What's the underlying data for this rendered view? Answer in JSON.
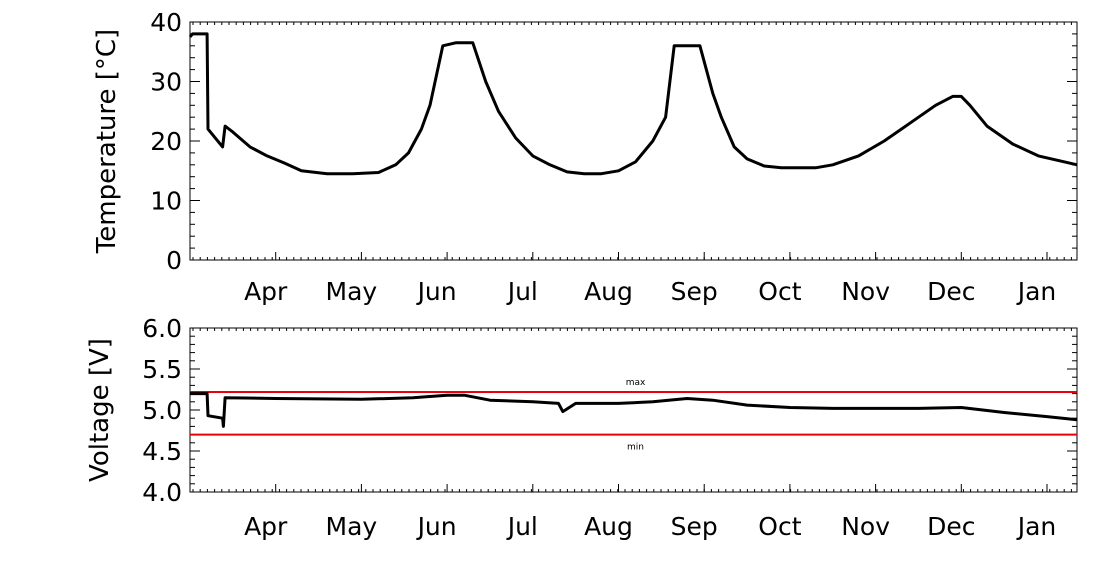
{
  "chart_data": [
    {
      "type": "line",
      "ylabel": "Temperature  [°C]",
      "ylim": [
        0,
        40
      ],
      "yticks": [
        "0",
        "10",
        "20",
        "30",
        "40"
      ],
      "xlim": [
        0,
        10.35
      ],
      "month_ticks": [
        {
          "label": "Apr",
          "x": 1.0
        },
        {
          "label": "May",
          "x": 2.0
        },
        {
          "label": "Jun",
          "x": 3.0
        },
        {
          "label": "Jul",
          "x": 4.0
        },
        {
          "label": "Aug",
          "x": 5.0
        },
        {
          "label": "Sep",
          "x": 6.0
        },
        {
          "label": "Oct",
          "x": 7.0
        },
        {
          "label": "Nov",
          "x": 8.0
        },
        {
          "label": "Dec",
          "x": 9.0
        },
        {
          "label": "Jan",
          "x": 10.0
        }
      ],
      "series": [
        {
          "x": [
            0.0,
            0.03,
            0.2,
            0.21,
            0.38,
            0.41,
            0.5,
            0.7,
            0.9,
            1.1,
            1.3,
            1.6,
            1.9,
            2.2,
            2.4,
            2.55,
            2.7,
            2.8,
            2.95,
            3.1,
            3.2,
            3.3,
            3.45,
            3.6,
            3.8,
            4.0,
            4.2,
            4.4,
            4.6,
            4.8,
            5.0,
            5.2,
            5.4,
            5.55,
            5.65,
            5.75,
            5.95,
            6.1,
            6.2,
            6.35,
            6.5,
            6.7,
            6.9,
            7.1,
            7.3,
            7.5,
            7.8,
            8.1,
            8.4,
            8.7,
            8.9,
            9.0,
            9.1,
            9.3,
            9.6,
            9.9,
            10.2,
            10.35
          ],
          "y": [
            37.5,
            38,
            38,
            22,
            19,
            22.5,
            21.5,
            19,
            17.5,
            16.3,
            15,
            14.5,
            14.5,
            14.7,
            16,
            18,
            22,
            26,
            36,
            36.5,
            36.5,
            36.5,
            30,
            25,
            20.5,
            17.5,
            16,
            14.8,
            14.5,
            14.5,
            15,
            16.5,
            20,
            24,
            36,
            36,
            36,
            28,
            24,
            19,
            17,
            15.8,
            15.5,
            15.5,
            15.5,
            16,
            17.5,
            20,
            23,
            26,
            27.5,
            27.5,
            26,
            22.5,
            19.5,
            17.5,
            16.5,
            16
          ]
        }
      ]
    },
    {
      "type": "line",
      "ylabel": "Voltage  [V]",
      "ylim": [
        4.0,
        6.0
      ],
      "yticks": [
        "4.0",
        "4.5",
        "5.0",
        "5.5",
        "6.0"
      ],
      "xlim": [
        0,
        10.35
      ],
      "month_ticks": [
        {
          "label": "Apr",
          "x": 1.0
        },
        {
          "label": "May",
          "x": 2.0
        },
        {
          "label": "Jun",
          "x": 3.0
        },
        {
          "label": "Jul",
          "x": 4.0
        },
        {
          "label": "Aug",
          "x": 5.0
        },
        {
          "label": "Sep",
          "x": 6.0
        },
        {
          "label": "Oct",
          "x": 7.0
        },
        {
          "label": "Nov",
          "x": 8.0
        },
        {
          "label": "Dec",
          "x": 9.0
        },
        {
          "label": "Jan",
          "x": 10.0
        }
      ],
      "reference_lines": [
        {
          "label": "max",
          "y": 5.22,
          "color": "#e8000b"
        },
        {
          "label": "min",
          "y": 4.7,
          "color": "#e8000b"
        }
      ],
      "series": [
        {
          "x": [
            0.0,
            0.2,
            0.21,
            0.38,
            0.39,
            0.41,
            1.0,
            2.0,
            2.6,
            3.0,
            3.2,
            3.5,
            4.0,
            4.3,
            4.35,
            4.5,
            5.0,
            5.4,
            5.8,
            6.1,
            6.5,
            7.0,
            7.5,
            8.0,
            8.5,
            9.0,
            9.5,
            10.0,
            10.35
          ],
          "y": [
            5.2,
            5.2,
            4.93,
            4.9,
            4.8,
            5.15,
            5.14,
            5.13,
            5.15,
            5.18,
            5.18,
            5.12,
            5.1,
            5.08,
            4.98,
            5.08,
            5.08,
            5.1,
            5.14,
            5.12,
            5.06,
            5.03,
            5.02,
            5.02,
            5.02,
            5.03,
            4.97,
            4.92,
            4.88
          ]
        }
      ]
    }
  ]
}
